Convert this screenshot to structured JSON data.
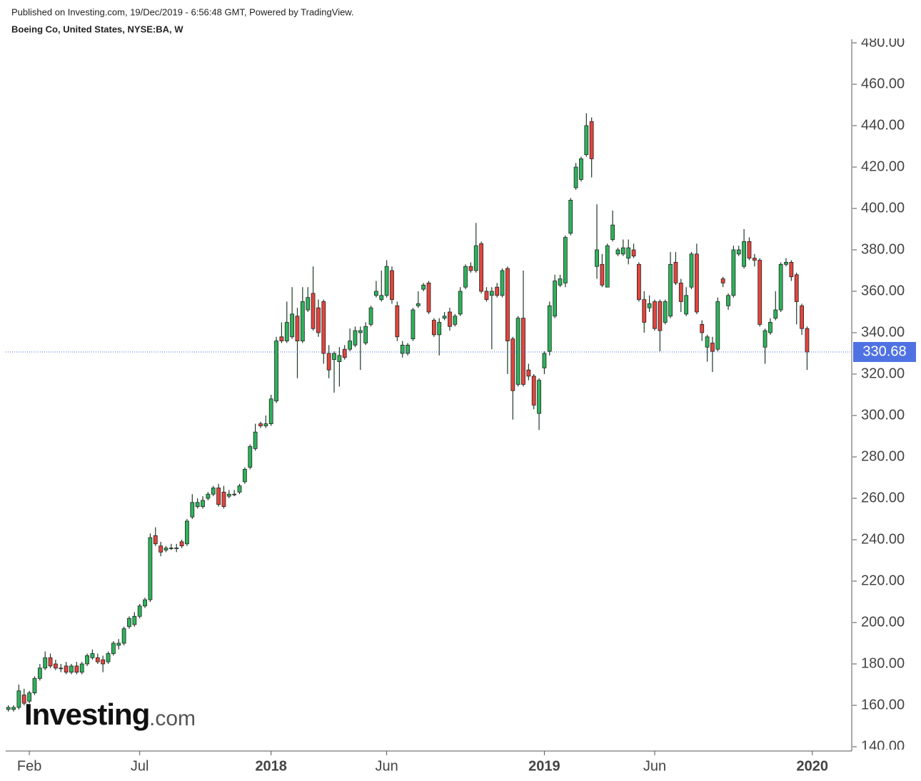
{
  "header": {
    "published": "Published on Investing.com, 19/Dec/2019 - 6:56:48 GMT, Powered by TradingView.",
    "symbol": "Boeing Co, United States, NYSE:BA, W"
  },
  "logo": {
    "brand": "Investing",
    "suffix": ".com"
  },
  "chart_data": {
    "type": "candlestick",
    "up_color": "#2db35b",
    "down_color": "#e2453d",
    "last_color": "#4f72e3",
    "categories": [
      null,
      null,
      null,
      null,
      "Feb",
      null,
      null,
      null,
      null,
      null,
      null,
      null,
      null,
      null,
      null,
      null,
      null,
      null,
      null,
      null,
      null,
      null,
      null,
      null,
      null,
      "Jul",
      null,
      null,
      null,
      null,
      null,
      null,
      null,
      null,
      null,
      null,
      null,
      null,
      null,
      null,
      null,
      null,
      null,
      null,
      null,
      null,
      null,
      null,
      null,
      null,
      "2018",
      null,
      null,
      null,
      null,
      null,
      null,
      null,
      null,
      null,
      null,
      null,
      null,
      null,
      null,
      null,
      null,
      null,
      null,
      null,
      null,
      null,
      "Jun",
      null,
      null,
      null,
      null,
      null,
      null,
      null,
      null,
      null,
      null,
      null,
      null,
      null,
      null,
      null,
      null,
      null,
      null,
      null,
      null,
      null,
      null,
      null,
      null,
      null,
      null,
      null,
      null,
      null,
      "2019",
      null,
      null,
      null,
      null,
      null,
      null,
      null,
      null,
      null,
      null,
      null,
      null,
      null,
      null,
      null,
      null,
      null,
      null,
      null,
      null,
      "Jun",
      null,
      null,
      null,
      null,
      null,
      null,
      null,
      null,
      null,
      null,
      null,
      null,
      null,
      null,
      null,
      null,
      null,
      null,
      null,
      null,
      null,
      null,
      null,
      null,
      null,
      null,
      null,
      null,
      null,
      "2020",
      null,
      null,
      null,
      null,
      null,
      null,
      null
    ],
    "open": [
      158,
      158,
      159,
      165,
      162,
      166,
      173,
      178,
      183,
      180,
      178,
      179,
      176,
      179,
      176,
      180,
      183,
      183,
      182,
      181,
      185,
      189,
      190,
      198,
      199,
      203,
      208,
      211,
      242,
      237,
      235,
      236,
      236,
      239,
      238,
      251,
      256,
      256,
      260,
      262,
      265,
      263,
      261,
      262,
      263,
      268,
      275,
      284,
      296,
      295,
      296,
      307,
      338,
      336,
      338,
      348,
      336,
      351,
      359,
      352,
      355,
      330,
      327,
      326,
      332,
      332,
      334,
      340,
      335,
      344,
      358,
      356,
      358,
      370,
      353,
      330,
      330,
      337,
      353,
      361,
      364,
      346,
      339,
      347,
      350,
      344,
      349,
      362,
      372,
      370,
      383,
      360,
      358,
      362,
      358,
      371,
      337,
      315,
      347,
      322,
      319,
      301,
      323,
      331,
      348,
      363,
      364,
      388,
      410,
      414,
      426,
      442,
      372,
      373,
      362,
      385,
      378,
      378,
      376,
      380,
      373,
      356,
      352,
      355,
      355,
      345,
      348,
      374,
      364,
      349,
      362,
      378,
      344,
      333,
      335,
      332,
      366,
      353,
      358,
      378,
      372,
      384,
      376,
      375,
      333,
      340,
      347,
      351,
      373,
      374,
      368,
      353,
      342,
      null,
      null,
      null,
      null,
      null,
      null,
      null,
      null
    ],
    "high": [
      160,
      160,
      170,
      168,
      167,
      174,
      180,
      186,
      185,
      182,
      180,
      181,
      180,
      181,
      181,
      185,
      187,
      185,
      184,
      186,
      191,
      192,
      198,
      203,
      205,
      209,
      212,
      243,
      246,
      239,
      237,
      238,
      238,
      240,
      250,
      262,
      260,
      261,
      263,
      266,
      267,
      266,
      264,
      264,
      267,
      275,
      286,
      296,
      297,
      300,
      310,
      338,
      345,
      355,
      362,
      352,
      362,
      362,
      372,
      356,
      356,
      334,
      331,
      333,
      334,
      342,
      343,
      343,
      345,
      353,
      365,
      370,
      375,
      372,
      355,
      336,
      335,
      352,
      360,
      364,
      365,
      347,
      347,
      350,
      352,
      349,
      362,
      373,
      374,
      393,
      384,
      362,
      362,
      364,
      371,
      372,
      338,
      348,
      370,
      325,
      320,
      318,
      331,
      355,
      368,
      368,
      387,
      405,
      422,
      425,
      446,
      444,
      402,
      378,
      383,
      399,
      381,
      385,
      385,
      383,
      374,
      360,
      358,
      356,
      356,
      356,
      379,
      379,
      366,
      362,
      379,
      383,
      346,
      339,
      338,
      357,
      367,
      359,
      382,
      382,
      390,
      386,
      378,
      376,
      342,
      347,
      360,
      374,
      376,
      375,
      369,
      354,
      343,
      null,
      null,
      null,
      null,
      null,
      null,
      null,
      null
    ],
    "low": [
      157,
      157,
      158,
      160,
      161,
      165,
      172,
      177,
      178,
      177,
      176,
      175,
      175,
      175,
      175,
      179,
      182,
      180,
      176,
      180,
      184,
      187,
      189,
      197,
      198,
      202,
      207,
      210,
      237,
      232,
      234,
      235,
      234,
      236,
      237,
      250,
      255,
      255,
      259,
      261,
      256,
      255,
      260,
      261,
      262,
      267,
      274,
      283,
      294,
      294,
      295,
      306,
      335,
      335,
      337,
      318,
      335,
      350,
      341,
      338,
      325,
      318,
      311,
      314,
      327,
      331,
      333,
      322,
      334,
      343,
      357,
      355,
      357,
      354,
      336,
      328,
      329,
      336,
      352,
      360,
      349,
      338,
      329,
      346,
      341,
      343,
      348,
      361,
      369,
      369,
      359,
      355,
      332,
      357,
      357,
      320,
      298,
      314,
      314,
      317,
      303,
      293,
      320,
      329,
      347,
      362,
      362,
      387,
      409,
      413,
      425,
      415,
      366,
      362,
      362,
      384,
      377,
      377,
      373,
      376,
      355,
      340,
      350,
      341,
      331,
      344,
      347,
      363,
      350,
      348,
      361,
      349,
      336,
      326,
      321,
      331,
      362,
      351,
      357,
      377,
      371,
      375,
      372,
      343,
      325,
      339,
      346,
      350,
      372,
      365,
      344,
      339,
      322,
      null,
      null,
      null,
      null,
      null,
      null,
      null,
      null
    ],
    "close": [
      159,
      159,
      167,
      161,
      166,
      173,
      178,
      183,
      179,
      178,
      178,
      176,
      179,
      176,
      180,
      184,
      185,
      181,
      180,
      185,
      190,
      190,
      197,
      202,
      203,
      208,
      211,
      241,
      238,
      234,
      236,
      236,
      236,
      237,
      249,
      258,
      258,
      259,
      262,
      265,
      257,
      256,
      262,
      262,
      266,
      274,
      285,
      292,
      295,
      296,
      308,
      336,
      336,
      345,
      349,
      336,
      355,
      357,
      342,
      340,
      330,
      322,
      330,
      329,
      328,
      336,
      341,
      341,
      343,
      352,
      360,
      358,
      372,
      356,
      338,
      334,
      334,
      351,
      354,
      363,
      350,
      339,
      345,
      348,
      343,
      348,
      360,
      372,
      370,
      382,
      360,
      356,
      360,
      358,
      370,
      336,
      312,
      347,
      315,
      319,
      305,
      317,
      330,
      353,
      365,
      366,
      386,
      404,
      420,
      424,
      440,
      424,
      380,
      363,
      382,
      392,
      380,
      381,
      381,
      377,
      356,
      345,
      354,
      342,
      341,
      355,
      373,
      364,
      355,
      358,
      378,
      350,
      340,
      338,
      331,
      355,
      364,
      358,
      380,
      380,
      384,
      376,
      375,
      344,
      341,
      345,
      351,
      373,
      374,
      367,
      355,
      342,
      330.68,
      null,
      null,
      null,
      null,
      null,
      null,
      null,
      null
    ],
    "ylim": [
      140,
      480
    ],
    "yticks": [
      {
        "value": 140,
        "label": "140.00"
      },
      {
        "value": 160,
        "label": "160.00"
      },
      {
        "value": 180,
        "label": "180.00"
      },
      {
        "value": 200,
        "label": "200.00"
      },
      {
        "value": 220,
        "label": "220.00"
      },
      {
        "value": 240,
        "label": "240.00"
      },
      {
        "value": 260,
        "label": "260.00"
      },
      {
        "value": 280,
        "label": "280.00"
      },
      {
        "value": 300,
        "label": "300.00"
      },
      {
        "value": 320,
        "label": "320.00"
      },
      {
        "value": 340,
        "label": "340.00"
      },
      {
        "value": 360,
        "label": "360.00"
      },
      {
        "value": 380,
        "label": "380.00"
      },
      {
        "value": 400,
        "label": "400.00"
      },
      {
        "value": 420,
        "label": "420.00"
      },
      {
        "value": 440,
        "label": "440.00"
      },
      {
        "value": 460,
        "label": "460.00"
      },
      {
        "value": 480,
        "label": "480.00"
      }
    ],
    "grid": false
  }
}
